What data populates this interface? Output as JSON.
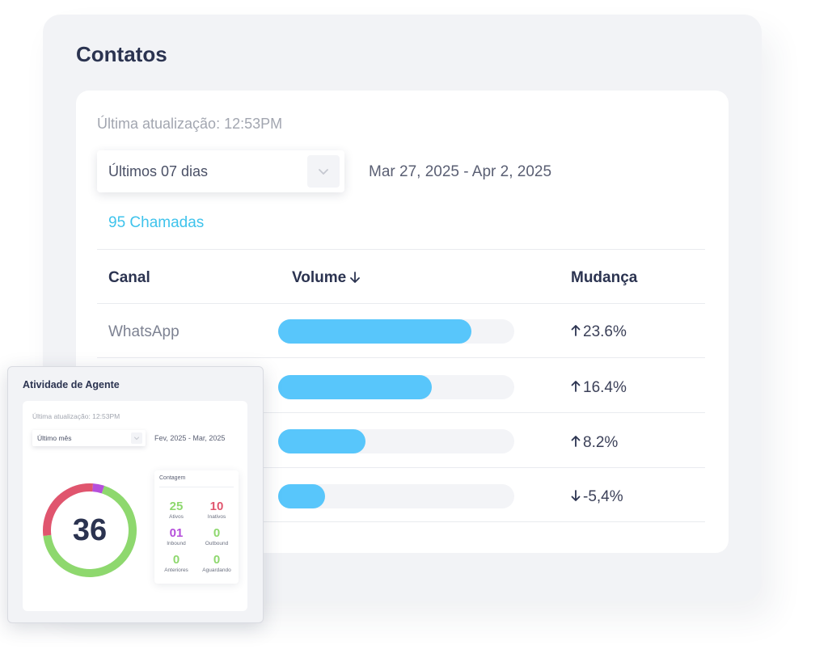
{
  "contacts": {
    "title": "Contatos",
    "last_update": "Última atualização: 12:53PM",
    "period_select": {
      "value": "Últimos 07 dias",
      "icon": "chevron-down-icon"
    },
    "date_range": "Mar 27, 2025 - Apr 2, 2025",
    "calls": "95 Chamadas",
    "accent_color": "#3fc3ec",
    "bar_color": "#58c6fb",
    "columns": {
      "channel": "Canal",
      "volume": "Volume",
      "change": "Mudança"
    },
    "rows": [
      {
        "channel": "WhatsApp",
        "volume_fraction": 0.82,
        "direction": "up",
        "change": "23.6%"
      },
      {
        "channel": "",
        "volume_fraction": 0.65,
        "direction": "up",
        "change": "16.4%"
      },
      {
        "channel": "",
        "volume_fraction": 0.37,
        "direction": "up",
        "change": "8.2%"
      },
      {
        "channel": "",
        "volume_fraction": 0.2,
        "direction": "down",
        "change": "-5,4%"
      }
    ]
  },
  "agent_activity": {
    "title": "Atividade de Agente",
    "last_update": "Última atualização: 12:53PM",
    "period_select": {
      "value": "Último mês",
      "icon": "chevron-down-icon"
    },
    "date_range": "Fev, 2025 - Mar, 2025",
    "total": "36",
    "donut_segments": [
      {
        "fraction": 0.68,
        "color": "#8ed86e"
      },
      {
        "fraction": 0.28,
        "color": "#e0556e"
      },
      {
        "fraction": 0.04,
        "color": "#b54fdb"
      }
    ],
    "count_title": "Contagem",
    "stats": [
      {
        "value": "25",
        "label": "Ativos",
        "color": "#8ed86e"
      },
      {
        "value": "10",
        "label": "Inativos",
        "color": "#e0556e"
      },
      {
        "value": "01",
        "label": "Inbound",
        "color": "#b54fdb"
      },
      {
        "value": "0",
        "label": "Outbound",
        "color": "#8ed86e"
      },
      {
        "value": "0",
        "label": "Anteriores",
        "color": "#8ed86e"
      },
      {
        "value": "0",
        "label": "Aguardando",
        "color": "#8ed86e"
      }
    ]
  }
}
